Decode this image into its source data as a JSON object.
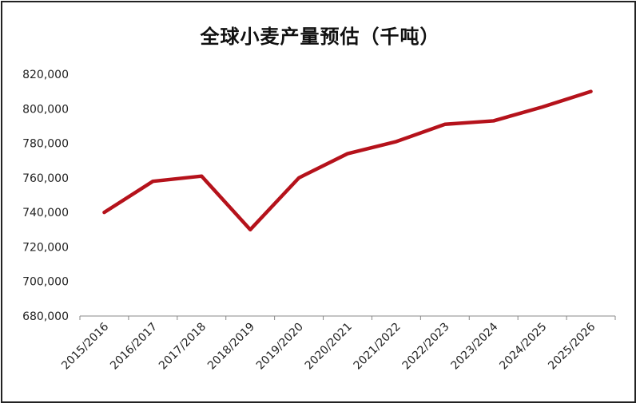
{
  "chart_data": {
    "type": "line",
    "title": "全球小麦产量预估（千吨）",
    "xlabel": "",
    "ylabel": "",
    "categories": [
      "2015/2016",
      "2016/2017",
      "2017/2018",
      "2018/2019",
      "2019/2020",
      "2020/2021",
      "2021/2022",
      "2022/2023",
      "2023/2024",
      "2024/2025",
      "2025/2026"
    ],
    "series": [
      {
        "values": [
          740000,
          758000,
          761000,
          730000,
          760000,
          774000,
          781000,
          791000,
          793000,
          801000,
          810000
        ]
      }
    ],
    "ylim": [
      680000,
      820000
    ],
    "yticks": [
      680000,
      700000,
      720000,
      740000,
      760000,
      780000,
      800000,
      820000
    ],
    "ytick_labels": [
      "680,000",
      "700,000",
      "720,000",
      "740,000",
      "760,000",
      "780,000",
      "800,000",
      "820,000"
    ],
    "grid": false,
    "line_color": "#b5121b"
  }
}
